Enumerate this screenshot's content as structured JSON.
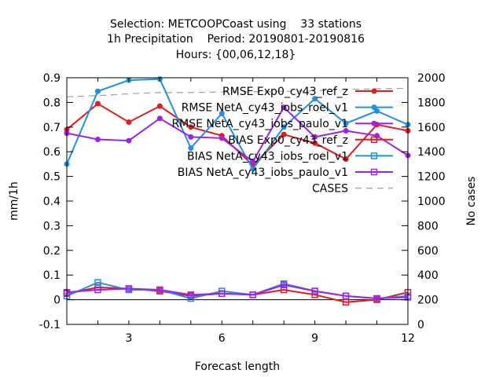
{
  "chart_data": {
    "type": "line",
    "title": [
      "Selection: METCOOPCoast using    33 stations",
      "1h Precipitation    Period: 20190801-20190816",
      "Hours: {00,06,12,18}"
    ],
    "xlabel": "Forecast length",
    "ylabel": "mm/1h",
    "y2label": "No cases",
    "xlim": [
      1,
      12
    ],
    "ylim": [
      -0.1,
      0.9
    ],
    "y2lim": [
      0,
      2000
    ],
    "xticks": [
      3,
      6,
      9,
      12
    ],
    "yticks": [
      -0.1,
      0,
      0.1,
      0.2,
      0.3,
      0.4,
      0.5,
      0.6,
      0.7,
      0.8,
      0.9
    ],
    "y2ticks": [
      0,
      200,
      400,
      600,
      800,
      1000,
      1200,
      1400,
      1600,
      1800,
      2000
    ],
    "legend_position": "top-right",
    "x": [
      1,
      2,
      3,
      4,
      5,
      6,
      7,
      8,
      9,
      10,
      11,
      12
    ],
    "series": [
      {
        "name": "RMSE Exp0_cy43_ref_z",
        "color": "#e41a1c",
        "marker": "filled-circle",
        "dash": "solid",
        "values": [
          0.69,
          0.795,
          0.72,
          0.785,
          0.7,
          0.665,
          0.545,
          0.67,
          0.635,
          0.57,
          0.71,
          0.685
        ]
      },
      {
        "name": "RMSE NetA_cy43_iobs_roel_v1",
        "color": "#1e90e6",
        "marker": "filled-circle",
        "dash": "solid",
        "values": [
          0.55,
          0.845,
          0.89,
          0.895,
          0.615,
          0.755,
          0.53,
          0.7,
          0.815,
          0.715,
          0.765,
          0.71
        ]
      },
      {
        "name": "RMSE NetA_cy43_iobs_paulo_v1",
        "color": "#a020f0",
        "marker": "filled-circle",
        "dash": "solid",
        "values": [
          0.675,
          0.65,
          0.645,
          0.735,
          0.66,
          0.655,
          0.56,
          0.78,
          0.66,
          0.685,
          0.665,
          0.585
        ]
      },
      {
        "name": "BIAS Exp0_cy43_ref_z",
        "color": "#e41a1c",
        "marker": "open-square",
        "dash": "solid",
        "values": [
          0.025,
          0.05,
          0.045,
          0.035,
          0.015,
          0.025,
          0.02,
          0.04,
          0.02,
          -0.01,
          0.0,
          0.03
        ]
      },
      {
        "name": "BIAS NetA_cy43_iobs_roel_v1",
        "color": "#1e90e6",
        "marker": "open-square",
        "dash": "solid",
        "values": [
          0.015,
          0.07,
          0.04,
          0.04,
          0.005,
          0.035,
          0.02,
          0.065,
          0.035,
          0.015,
          0.005,
          0.015
        ]
      },
      {
        "name": "BIAS NetA_cy43_iobs_paulo_v1",
        "color": "#a020f0",
        "marker": "open-square",
        "dash": "solid",
        "values": [
          0.03,
          0.04,
          0.045,
          0.04,
          0.02,
          0.025,
          0.02,
          0.06,
          0.035,
          0.015,
          0.005,
          0.01
        ]
      },
      {
        "name": "CASES",
        "color": "#a0a0a0",
        "marker": "none",
        "dash": "dashed",
        "axis": "y2",
        "values": [
          1845,
          1855,
          1870,
          1880,
          1880,
          1885,
          1885,
          1890,
          1895,
          1905,
          1910,
          1915
        ]
      }
    ]
  }
}
